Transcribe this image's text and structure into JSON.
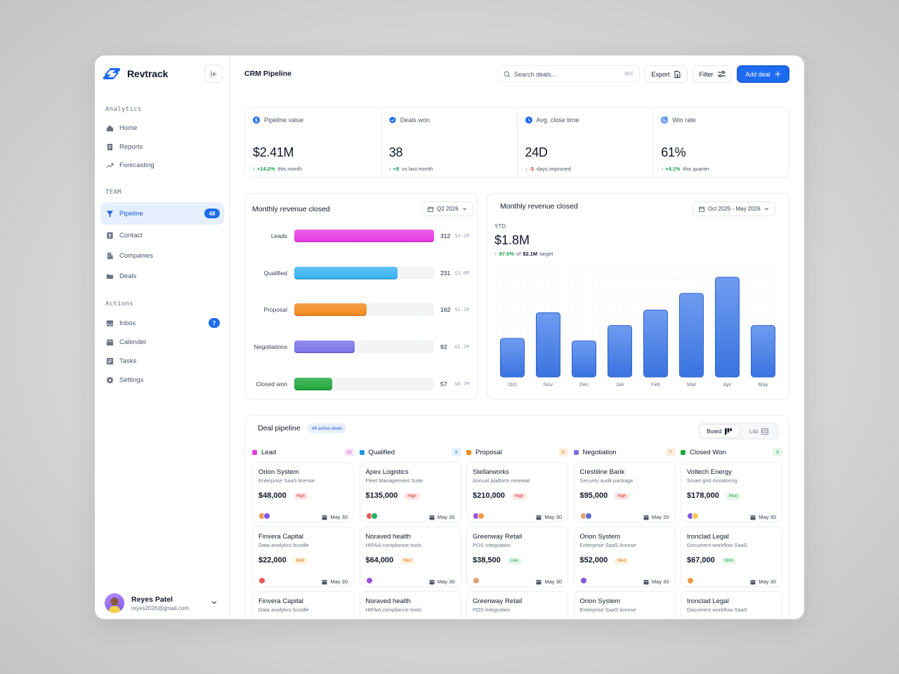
{
  "brand": {
    "name": "Revtrack"
  },
  "sidebar": {
    "sections": [
      {
        "title": "Analytics",
        "items": [
          {
            "label": "Home"
          },
          {
            "label": "Reports"
          },
          {
            "label": "Forecasting"
          }
        ]
      },
      {
        "title": "TEAM",
        "items": [
          {
            "label": "Pipeline",
            "badge": "48"
          },
          {
            "label": "Contact"
          },
          {
            "label": "Companies"
          },
          {
            "label": "Deals"
          }
        ]
      },
      {
        "title": "Actions",
        "items": [
          {
            "label": "Inbox",
            "badge": "7"
          },
          {
            "label": "Calender"
          },
          {
            "label": "Tasks"
          },
          {
            "label": "Settings"
          }
        ]
      }
    ],
    "user": {
      "name": "Reyes Patel",
      "email": "reyes2026@gmail.com"
    }
  },
  "header": {
    "title": "CRM Pipeline",
    "search_placeholder": "Search deals...",
    "search_shortcut": "⌘K",
    "export_label": "Export",
    "filter_label": "Filter",
    "add_label": "Add deal"
  },
  "stats": [
    {
      "label": "Pipeline value",
      "value": "$2.41M",
      "delta": "+14.2%",
      "delta_dir": "up",
      "note": "this month",
      "icon": "dollar-icon"
    },
    {
      "label": "Deals won",
      "value": "38",
      "delta": "+8",
      "delta_dir": "up",
      "note": "vs last month",
      "icon": "check-badge-icon"
    },
    {
      "label": "Avg. close time",
      "value": "24D",
      "delta": "-3",
      "delta_dir": "down",
      "note": "days improved",
      "icon": "clock-icon"
    },
    {
      "label": "Win rate",
      "value": "61%",
      "delta": "+4.1%",
      "delta_dir": "up",
      "note": "this quarter",
      "icon": "target-icon"
    }
  ],
  "funnel": {
    "title": "Monthly revenue closed",
    "period": "Q2 2026",
    "rows": [
      {
        "label": "Leads",
        "count": "312",
        "amount": "$4.1M",
        "fill": 1.0,
        "color": "#e83ae3"
      },
      {
        "label": "Qualified",
        "count": "231",
        "amount": "$3.0M",
        "fill": 0.74,
        "color": "#37b4f5"
      },
      {
        "label": "Proposal",
        "count": "162",
        "amount": "$2.1M",
        "fill": 0.52,
        "color": "#f28a1c"
      },
      {
        "label": "Negotiations",
        "count": "92",
        "amount": "$1.2M",
        "fill": 0.43,
        "color": "#7a73e9"
      },
      {
        "label": "Closed won",
        "count": "57",
        "amount": "$0.7M",
        "fill": 0.27,
        "color": "#1fa83c"
      }
    ]
  },
  "revenue": {
    "title": "Monthly revenue closed",
    "period": "Oct 2025 - May 2026",
    "ytd_label": "YTD",
    "ytd_value": "$1.8M",
    "delta": "87.6%",
    "target_prefix": "of",
    "target": "$2.1M",
    "target_suffix": "target"
  },
  "chart_data": {
    "type": "bar",
    "categories": [
      "Oct",
      "Nov",
      "Dec",
      "Jan",
      "Feb",
      "Mar",
      "Apr",
      "May"
    ],
    "values": [
      0.6,
      1.0,
      0.56,
      0.8,
      1.04,
      1.3,
      1.55,
      0.8
    ],
    "ylim": [
      0,
      1.8
    ],
    "grid": true,
    "color": "#3d7be6"
  },
  "pipeline": {
    "title": "Deal pipeline",
    "badge": "48 active deals",
    "view_board": "Board",
    "view_list": "List",
    "columns": [
      {
        "name": "Lead",
        "count": "12",
        "color": "#e83ae3",
        "count_bg": "#fde7fb",
        "count_fg": "#c026d3",
        "deals": [
          {
            "name": "Orion System",
            "sub": "Enterprise SaaS license",
            "amount": "$48,000",
            "tag": "High",
            "tag_type": "high",
            "date": "May 30"
          },
          {
            "name": "Finvera Capital",
            "sub": "Data analytics bundle",
            "amount": "$22,000",
            "tag": "Med",
            "tag_type": "med",
            "date": "May 30"
          },
          {
            "name": "Finvera Capital",
            "sub": "Data analytics bundle"
          }
        ]
      },
      {
        "name": "Qualified",
        "count": "9",
        "color": "#2196e8",
        "count_bg": "#e3f2fd",
        "count_fg": "#1976d2",
        "deals": [
          {
            "name": "Apex Logistics",
            "sub": "Fleet Management Suite",
            "amount": "$135,000",
            "tag": "High",
            "tag_type": "high",
            "date": "May 30"
          },
          {
            "name": "Noraved health",
            "sub": "HIPAA compliance tools",
            "amount": "$64,000",
            "tag": "Med",
            "tag_type": "med",
            "date": "May 30"
          },
          {
            "name": "Noraved health",
            "sub": "HIPAA compliance tools"
          }
        ]
      },
      {
        "name": "Proposal",
        "count": "11",
        "color": "#f28a1c",
        "count_bg": "#fdf0e1",
        "count_fg": "#d97706",
        "deals": [
          {
            "name": "Stellarworks",
            "sub": "Annual platform renewal",
            "amount": "$210,000",
            "tag": "High",
            "tag_type": "high",
            "date": "May 30"
          },
          {
            "name": "Greenway Retail",
            "sub": "POS Integration",
            "amount": "$38,500",
            "tag": "Low",
            "tag_type": "low",
            "date": "May 30"
          },
          {
            "name": "Greenway Retail",
            "sub": "POS Integration"
          }
        ]
      },
      {
        "name": "Negotiation",
        "count": "7",
        "color": "#7a73e9",
        "count_bg": "#fdf0e1",
        "count_fg": "#d97706",
        "deals": [
          {
            "name": "Crestiline Bank",
            "sub": "Security audit package",
            "amount": "$95,000",
            "tag": "High",
            "tag_type": "high",
            "date": "May 20"
          },
          {
            "name": "Orion System",
            "sub": "Enterprise SaaS license",
            "amount": "$52,000",
            "tag": "Med",
            "tag_type": "med",
            "date": "May 30"
          },
          {
            "name": "Orion System",
            "sub": "Enterprise SaaS license"
          }
        ]
      },
      {
        "name": "Closed Won",
        "count": "9",
        "color": "#1fa83c",
        "count_bg": "#e6f7ea",
        "count_fg": "#16a34a",
        "deals": [
          {
            "name": "Voltech Energy",
            "sub": "Smart grid monitoring",
            "amount": "$178,000",
            "tag": "Won",
            "tag_type": "won",
            "date": "May 30"
          },
          {
            "name": "Ironclad Legal",
            "sub": "Document workflow SaaS",
            "amount": "$67,000",
            "tag": "Won",
            "tag_type": "won",
            "date": "May 30"
          },
          {
            "name": "Ironclad Legal",
            "sub": "Document workflow SaaS"
          }
        ]
      }
    ]
  }
}
